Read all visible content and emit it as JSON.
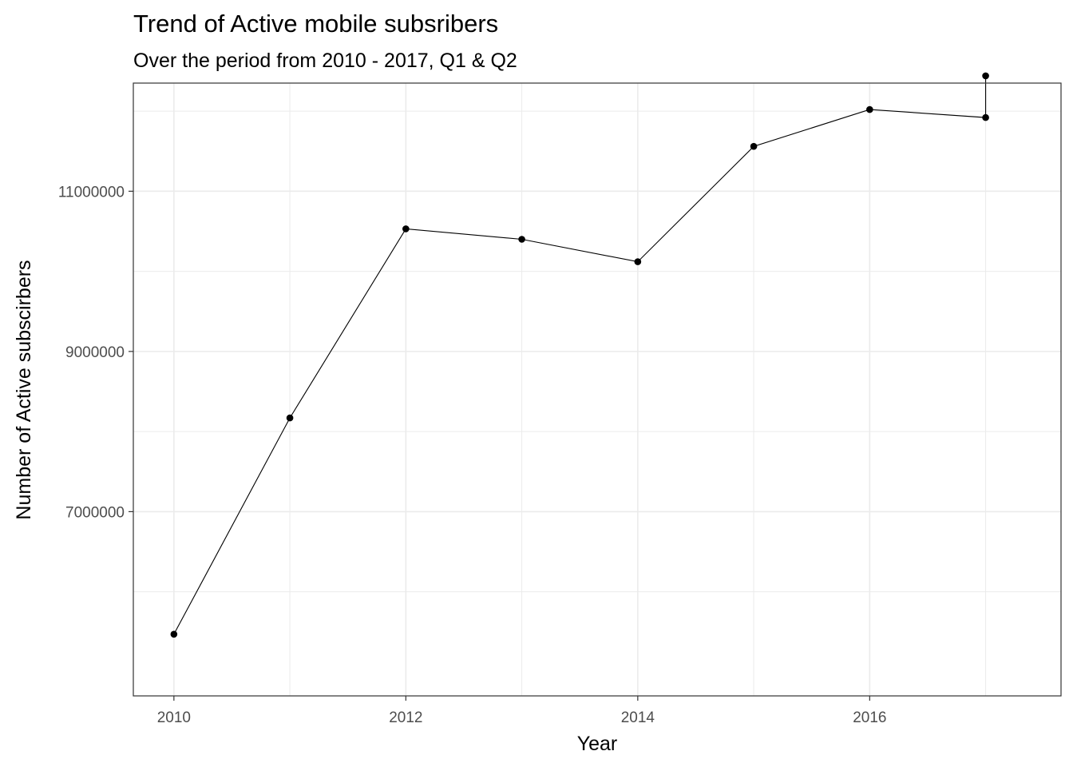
{
  "chart_data": {
    "type": "line",
    "title": "Trend of Active mobile subsribers",
    "subtitle": "Over the period from 2010 - 2017, Q1 & Q2",
    "xlabel": "Year",
    "ylabel": "Number of Active subscirbers",
    "xlim": [
      2009.65,
      2017.65
    ],
    "ylim": [
      4700000,
      12350000
    ],
    "x_ticks": [
      2010,
      2012,
      2014,
      2016
    ],
    "x_tick_labels": [
      "2010",
      "2012",
      "2014",
      "2016"
    ],
    "x_minor_ticks": [
      2011,
      2013,
      2015,
      2017
    ],
    "y_ticks": [
      7000000,
      9000000,
      11000000
    ],
    "y_tick_labels": [
      "7000000",
      "9000000",
      "11000000"
    ],
    "y_minor_ticks": [
      6000000,
      8000000,
      10000000,
      12000000
    ],
    "grid": true,
    "series": [
      {
        "points": [
          {
            "x": 2010,
            "y": 5470000
          },
          {
            "x": 2011,
            "y": 8170000
          },
          {
            "x": 2012,
            "y": 10530000
          },
          {
            "x": 2013,
            "y": 10400000
          },
          {
            "x": 2014,
            "y": 10120000
          },
          {
            "x": 2015,
            "y": 11560000
          },
          {
            "x": 2016,
            "y": 12020000
          },
          {
            "x": 2017,
            "y": 11920000
          },
          {
            "x": 2017,
            "y": 12440000
          }
        ]
      }
    ],
    "colors": {
      "line": "#000000",
      "point": "#000000",
      "grid": "#ebebeb",
      "panel_border": "#333333",
      "tick_text": "#4d4d4d"
    }
  }
}
